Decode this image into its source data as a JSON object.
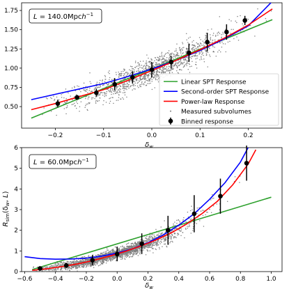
{
  "chart_data": [
    {
      "type": "scatter",
      "xlabel": "δ_w",
      "ylabel": "",
      "xlim": [
        -0.27,
        0.27
      ],
      "ylim": [
        0.22,
        1.85
      ],
      "xticks": [
        -0.2,
        -0.1,
        0.0,
        0.1,
        0.2
      ],
      "xtick_labels": [
        "−0.2",
        "−0.1",
        "0.0",
        "0.1",
        "0.2"
      ],
      "yticks": [
        0.5,
        0.75,
        1.0,
        1.25,
        1.5,
        1.75
      ],
      "ytick_labels": [
        "0.50",
        "0.75",
        "1.00",
        "1.25",
        "1.50",
        "1.75"
      ],
      "annotation": "L = 140.0Mpch⁻¹",
      "legend_position": "lower right",
      "legend": [
        {
          "label": "Linear SPT Response",
          "color": "#2ca02c",
          "kind": "line"
        },
        {
          "label": "Second-order SPT Response",
          "color": "#0000ff",
          "kind": "line"
        },
        {
          "label": "Power-law Response",
          "color": "#ff0000",
          "kind": "line"
        },
        {
          "label": "Measured subvolumes",
          "color": "#808080",
          "kind": "dot"
        },
        {
          "label": "Binned response",
          "color": "#000000",
          "kind": "errorbar"
        }
      ],
      "series": [
        {
          "name": "Linear SPT Response",
          "color": "#2ca02c",
          "kind": "line",
          "x": [
            -0.25,
            0.25
          ],
          "y": [
            0.35,
            1.63
          ]
        },
        {
          "name": "Second-order SPT Response",
          "color": "#0000ff",
          "kind": "line",
          "x": [
            -0.25,
            -0.2,
            -0.15,
            -0.1,
            -0.05,
            0.0,
            0.05,
            0.1,
            0.15,
            0.2,
            0.25
          ],
          "y": [
            0.59,
            0.66,
            0.73,
            0.8,
            0.89,
            0.99,
            1.1,
            1.23,
            1.38,
            1.55,
            1.87
          ]
        },
        {
          "name": "Power-law Response",
          "color": "#ff0000",
          "kind": "line",
          "x": [
            -0.25,
            -0.2,
            -0.15,
            -0.1,
            -0.05,
            0.0,
            0.05,
            0.1,
            0.15,
            0.2,
            0.25
          ],
          "y": [
            0.46,
            0.54,
            0.63,
            0.72,
            0.84,
            0.97,
            1.1,
            1.24,
            1.39,
            1.56,
            1.77
          ]
        },
        {
          "name": "Binned response",
          "color": "#000000",
          "kind": "errorbar",
          "x": [
            -0.195,
            -0.155,
            -0.115,
            -0.077,
            -0.04,
            0.0,
            0.04,
            0.077,
            0.115,
            0.155,
            0.193
          ],
          "y": [
            0.54,
            0.62,
            0.68,
            0.79,
            0.88,
            0.98,
            1.08,
            1.2,
            1.34,
            1.47,
            1.62
          ],
          "err": [
            0.05,
            0.03,
            0.05,
            0.08,
            0.08,
            0.1,
            0.08,
            0.12,
            0.12,
            0.1,
            0.06
          ]
        }
      ],
      "scatter_cloud": {
        "name": "Measured subvolumes",
        "color": "#808080",
        "trend": "power-law",
        "x_range": [
          -0.25,
          0.25
        ]
      }
    },
    {
      "type": "scatter",
      "xlabel": "δ_w",
      "ylabel": "R_sim(δ_w, L)",
      "xlim": [
        -0.62,
        1.07
      ],
      "ylim": [
        0.0,
        6.0
      ],
      "xticks": [
        -0.6,
        -0.4,
        -0.2,
        0.0,
        0.2,
        0.4,
        0.6,
        0.8,
        1.0
      ],
      "xtick_labels": [
        "−0.6",
        "−0.4",
        "−0.2",
        "0.0",
        "0.2",
        "0.4",
        "0.6",
        "0.8",
        "1.0"
      ],
      "yticks": [
        0,
        1,
        2,
        3,
        4,
        5,
        6
      ],
      "ytick_labels": [
        "0",
        "1",
        "2",
        "3",
        "4",
        "5",
        "6"
      ],
      "annotation": "L = 60.0Mpch⁻¹",
      "series": [
        {
          "name": "Linear SPT Response",
          "color": "#2ca02c",
          "kind": "line",
          "x": [
            -0.55,
            1.0
          ],
          "y": [
            0.1,
            3.6
          ]
        },
        {
          "name": "Second-order SPT Response",
          "color": "#0000ff",
          "kind": "line",
          "x": [
            -0.6,
            -0.5,
            -0.4,
            -0.3,
            -0.2,
            -0.1,
            0.0,
            0.1,
            0.2,
            0.3,
            0.4,
            0.5,
            0.6,
            0.7,
            0.8,
            0.85
          ],
          "y": [
            0.72,
            0.63,
            0.6,
            0.61,
            0.65,
            0.75,
            0.9,
            1.1,
            1.4,
            1.78,
            2.25,
            2.8,
            3.5,
            4.3,
            5.3,
            6.0
          ]
        },
        {
          "name": "Power-law Response",
          "color": "#ff0000",
          "kind": "line",
          "x": [
            -0.55,
            -0.45,
            -0.35,
            -0.25,
            -0.15,
            -0.05,
            0.05,
            0.15,
            0.25,
            0.35,
            0.45,
            0.55,
            0.65,
            0.75,
            0.85,
            0.9
          ],
          "y": [
            0.06,
            0.14,
            0.25,
            0.38,
            0.55,
            0.75,
            0.97,
            1.23,
            1.52,
            1.87,
            2.3,
            2.8,
            3.4,
            4.2,
            5.2,
            5.9
          ]
        },
        {
          "name": "Binned response",
          "color": "#000000",
          "kind": "errorbar",
          "x": [
            -0.5,
            -0.33,
            -0.16,
            0.0,
            0.16,
            0.33,
            0.5,
            0.67,
            0.84
          ],
          "y": [
            0.15,
            0.3,
            0.55,
            0.85,
            1.35,
            2.0,
            2.8,
            3.65,
            5.25
          ],
          "err": [
            0.06,
            0.12,
            0.25,
            0.35,
            0.5,
            0.7,
            0.9,
            0.85,
            0.85
          ]
        }
      ],
      "scatter_cloud": {
        "name": "Measured subvolumes",
        "color": "#808080",
        "trend": "power-law",
        "x_range": [
          -0.55,
          0.85
        ]
      }
    }
  ]
}
